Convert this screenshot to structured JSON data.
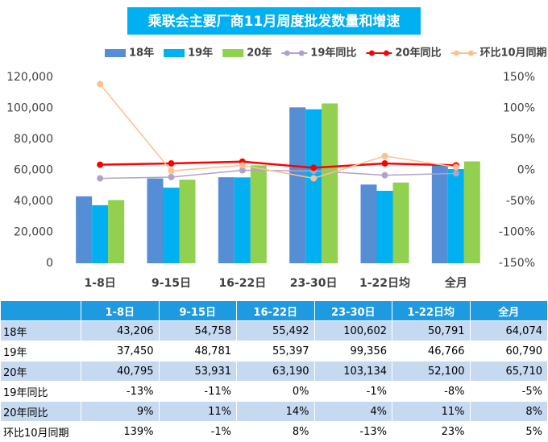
{
  "chart_data": {
    "type": "bar",
    "title": "乘联会主要厂商11月周度批发数量和增速",
    "categories": [
      "1-8日",
      "9-15日",
      "16-22日",
      "23-30日",
      "1-22日均",
      "全月"
    ],
    "series": [
      {
        "name": "18年",
        "color": "#558ed5",
        "values": [
          43206,
          54758,
          55492,
          100602,
          50791,
          64074
        ],
        "value_labels": [
          "43,206",
          "54,758",
          "55,492",
          "100,602",
          "50,791",
          "64,074"
        ]
      },
      {
        "name": "19年",
        "color": "#00b0f0",
        "values": [
          37450,
          48781,
          55397,
          99356,
          46766,
          60790
        ],
        "value_labels": [
          "37,450",
          "48,781",
          "55,397",
          "99,356",
          "46,766",
          "60,790"
        ]
      },
      {
        "name": "20年",
        "color": "#92d050",
        "values": [
          40795,
          53931,
          63190,
          103134,
          52100,
          65710
        ],
        "value_labels": [
          "40,795",
          "53,931",
          "63,190",
          "103,134",
          "52,100",
          "65,710"
        ]
      },
      {
        "name": "19年同比",
        "type": "line",
        "axis": "y2",
        "color": "#b3a2c7",
        "values": [
          -13,
          -11,
          0,
          -1,
          -8,
          -5
        ],
        "value_labels": [
          "-13%",
          "-11%",
          "0%",
          "-1%",
          "-8%",
          "-5%"
        ]
      },
      {
        "name": "20年同比",
        "type": "line",
        "axis": "y2",
        "color": "#ff0000",
        "values": [
          9,
          11,
          14,
          4,
          11,
          8
        ],
        "value_labels": [
          "9%",
          "11%",
          "14%",
          "4%",
          "11%",
          "8%"
        ]
      },
      {
        "name": "环比10月同期",
        "type": "line",
        "axis": "y2",
        "color": "#fac090",
        "values": [
          139,
          -1,
          8,
          -13,
          23,
          5
        ],
        "value_labels": [
          "139%",
          "-1%",
          "8%",
          "-13%",
          "23%",
          "5%"
        ]
      }
    ],
    "ylim": [
      0,
      120000
    ],
    "yticks": [
      {
        "value": 120000,
        "label": "120,000"
      },
      {
        "value": 100000,
        "label": "100,000"
      },
      {
        "value": 80000,
        "label": "80,000"
      },
      {
        "value": 60000,
        "label": "60,000"
      },
      {
        "value": 40000,
        "label": "40,000"
      },
      {
        "value": 20000,
        "label": "20,000"
      },
      0
    ],
    "y2lim": [
      -150,
      150
    ],
    "y2ticks": [
      {
        "value": 150,
        "label": "150%"
      },
      {
        "value": 100,
        "label": "100%"
      },
      {
        "value": 50,
        "label": "50%"
      },
      {
        "value": 0,
        "label": "0%"
      },
      {
        "value": -50,
        "label": "-50%"
      },
      {
        "value": -100,
        "label": "-100%"
      },
      {
        "value": -150,
        "label": "-150%"
      }
    ],
    "grid": false,
    "legend": "top"
  }
}
